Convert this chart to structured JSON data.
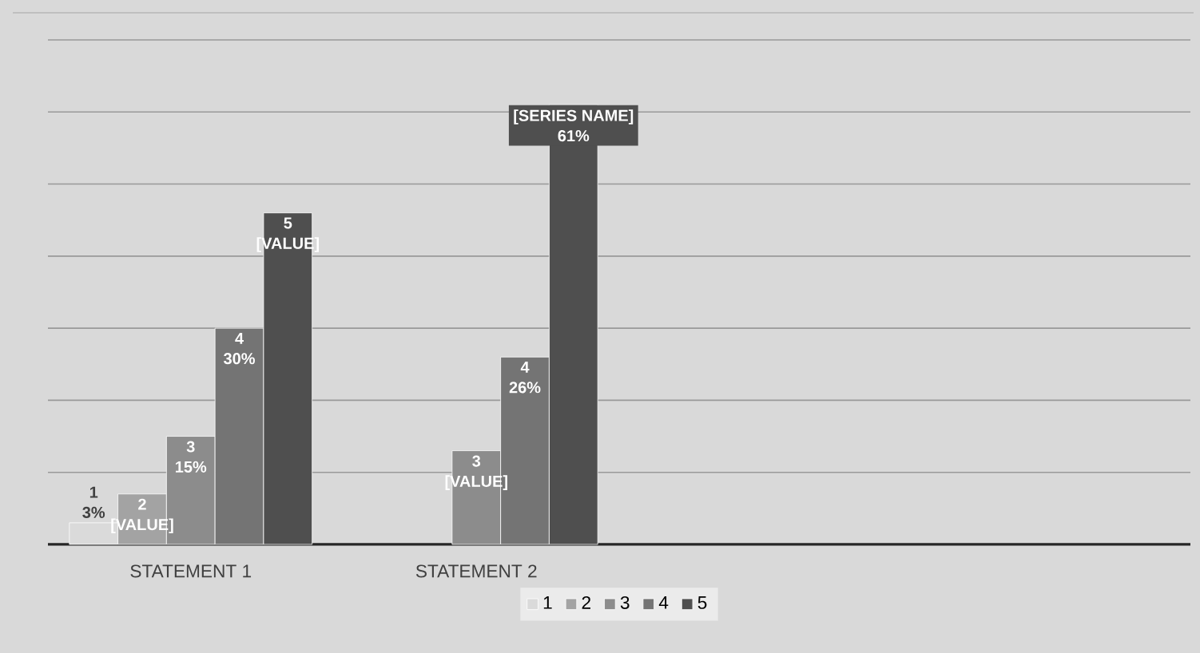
{
  "chart_data": {
    "type": "bar",
    "categories": [
      "STATEMENT 1",
      "STATEMENT 2",
      null,
      null
    ],
    "series": [
      {
        "name": "1",
        "color": "#dadada",
        "values": [
          3,
          null,
          null,
          null
        ],
        "value_labels": [
          "3%",
          null,
          null,
          null
        ]
      },
      {
        "name": "2",
        "color": "#a3a3a3",
        "values": [
          7,
          null,
          null,
          null
        ],
        "value_labels": [
          "[VALUE]",
          null,
          null,
          null
        ]
      },
      {
        "name": "3",
        "color": "#8c8c8c",
        "values": [
          15,
          13,
          null,
          null
        ],
        "value_labels": [
          "15%",
          "[VALUE]",
          null,
          null
        ]
      },
      {
        "name": "4",
        "color": "#747474",
        "values": [
          30,
          26,
          null,
          null
        ],
        "value_labels": [
          "30%",
          "26%",
          null,
          null
        ]
      },
      {
        "name": "5",
        "color": "#4f4f4f",
        "values": [
          46,
          61,
          null,
          null
        ],
        "value_labels": [
          "[VALUE]",
          "61%",
          null,
          null
        ]
      }
    ],
    "annotations": [
      "[SERIES NAME]"
    ],
    "ylim": [
      0,
      70
    ],
    "yticks": [
      {
        "value": 0,
        "label": null
      },
      {
        "value": 10,
        "label": null
      },
      {
        "value": 20,
        "label": null
      },
      {
        "value": 30,
        "label": null
      },
      {
        "value": 40,
        "label": null
      },
      {
        "value": 50,
        "label": null
      },
      {
        "value": 60,
        "label": null
      },
      {
        "value": 70,
        "label": null
      }
    ],
    "tick_labels": "x",
    "grid": "y",
    "legend": "bottom"
  }
}
